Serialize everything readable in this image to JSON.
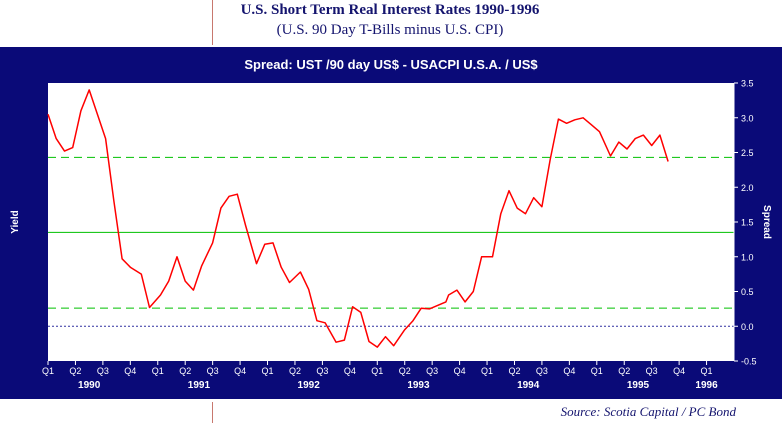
{
  "header": {
    "title": "U.S. Short Term Real Interest Rates 1990-1996",
    "subtitle": "(U.S. 90 Day T-Bills minus U.S. CPI)"
  },
  "footer": {
    "source": "Source: Scotia Capital / PC Bond"
  },
  "colors": {
    "frame": "#0a0a78",
    "plot_bg": "#ffffff",
    "series": "#ff0000",
    "band": "#00c000",
    "zero": "#3030a0"
  },
  "chart_data": {
    "type": "line",
    "title": "Spread: UST /90 day US$  -  USACPI U.S.A. / US$",
    "ylabel_left": "Yield",
    "ylabel_right": "Spread",
    "ylim": [
      -0.5,
      3.5
    ],
    "yticks": [
      "3.5",
      "3.0",
      "2.5",
      "2.0",
      "1.5",
      "1.0",
      "0.5",
      "0.0",
      "-0.5"
    ],
    "xlim": [
      0,
      25
    ],
    "quarter_ticks": [
      "Q1",
      "Q2",
      "Q3",
      "Q4",
      "Q1",
      "Q2",
      "Q3",
      "Q4",
      "Q1",
      "Q2",
      "Q3",
      "Q4",
      "Q1",
      "Q2",
      "Q3",
      "Q4",
      "Q1",
      "Q2",
      "Q3",
      "Q4",
      "Q1",
      "Q2",
      "Q3",
      "Q4",
      "Q1"
    ],
    "year_labels": [
      {
        "label": "1990",
        "at": 1.5
      },
      {
        "label": "1991",
        "at": 5.5
      },
      {
        "label": "1992",
        "at": 9.5
      },
      {
        "label": "1993",
        "at": 13.5
      },
      {
        "label": "1994",
        "at": 17.5
      },
      {
        "label": "1995",
        "at": 21.5
      },
      {
        "label": "1996",
        "at": 24
      }
    ],
    "reference_lines": [
      {
        "value": 2.43,
        "style": "dashed",
        "color": "#00c000"
      },
      {
        "value": 1.35,
        "style": "solid",
        "color": "#00c000"
      },
      {
        "value": 0.26,
        "style": "dashed",
        "color": "#00c000"
      },
      {
        "value": 0.0,
        "style": "dotted",
        "color": "#3030a0"
      }
    ],
    "series": [
      {
        "values": [
          [
            0,
            3.05
          ],
          [
            0.3,
            2.7
          ],
          [
            0.6,
            2.52
          ],
          [
            0.9,
            2.57
          ],
          [
            1.2,
            3.1
          ],
          [
            1.5,
            3.4
          ],
          [
            1.8,
            3.05
          ],
          [
            2.1,
            2.7
          ],
          [
            2.4,
            1.8
          ],
          [
            2.7,
            0.97
          ],
          [
            3.0,
            0.85
          ],
          [
            3.4,
            0.75
          ],
          [
            3.7,
            0.27
          ],
          [
            4.1,
            0.45
          ],
          [
            4.4,
            0.65
          ],
          [
            4.7,
            1.0
          ],
          [
            5.0,
            0.65
          ],
          [
            5.3,
            0.52
          ],
          [
            5.6,
            0.87
          ],
          [
            6.0,
            1.2
          ],
          [
            6.3,
            1.7
          ],
          [
            6.6,
            1.87
          ],
          [
            6.9,
            1.9
          ],
          [
            7.2,
            1.45
          ],
          [
            7.6,
            0.9
          ],
          [
            7.9,
            1.18
          ],
          [
            8.2,
            1.2
          ],
          [
            8.5,
            0.85
          ],
          [
            8.8,
            0.63
          ],
          [
            9.2,
            0.78
          ],
          [
            9.5,
            0.53
          ],
          [
            9.8,
            0.08
          ],
          [
            10.1,
            0.05
          ],
          [
            10.5,
            -0.23
          ],
          [
            10.8,
            -0.2
          ],
          [
            11.1,
            0.28
          ],
          [
            11.4,
            0.2
          ],
          [
            11.7,
            -0.22
          ],
          [
            12.0,
            -0.3
          ],
          [
            12.3,
            -0.15
          ],
          [
            12.6,
            -0.28
          ],
          [
            13.0,
            -0.05
          ],
          [
            13.3,
            0.08
          ],
          [
            13.6,
            0.26
          ],
          [
            13.9,
            0.25
          ],
          [
            14.2,
            0.3
          ],
          [
            14.5,
            0.35
          ],
          [
            14.6,
            0.45
          ],
          [
            14.9,
            0.52
          ],
          [
            15.2,
            0.35
          ],
          [
            15.5,
            0.5
          ],
          [
            15.8,
            1.0
          ],
          [
            16.2,
            1.0
          ],
          [
            16.5,
            1.62
          ],
          [
            16.8,
            1.95
          ],
          [
            17.1,
            1.7
          ],
          [
            17.4,
            1.62
          ],
          [
            17.7,
            1.85
          ],
          [
            18.0,
            1.72
          ],
          [
            18.3,
            2.4
          ],
          [
            18.6,
            2.98
          ],
          [
            18.9,
            2.92
          ],
          [
            19.2,
            2.97
          ],
          [
            19.5,
            3.0
          ],
          [
            19.8,
            2.9
          ],
          [
            20.1,
            2.8
          ],
          [
            20.5,
            2.45
          ],
          [
            20.8,
            2.65
          ],
          [
            21.1,
            2.55
          ],
          [
            21.4,
            2.7
          ],
          [
            21.7,
            2.75
          ],
          [
            22.0,
            2.6
          ],
          [
            22.3,
            2.75
          ],
          [
            22.6,
            2.37
          ]
        ]
      }
    ]
  }
}
